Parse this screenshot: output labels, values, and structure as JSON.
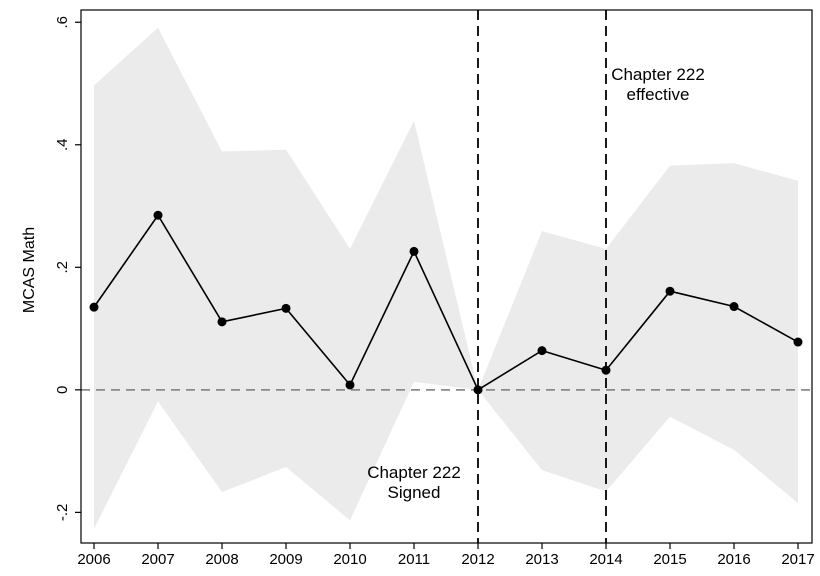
{
  "chart_data": {
    "type": "line",
    "title": "",
    "xlabel": "",
    "ylabel": "MCAS Math",
    "categories": [
      "2006",
      "2007",
      "2008",
      "2009",
      "2010",
      "2011",
      "2012",
      "2013",
      "2014",
      "2015",
      "2016",
      "2017"
    ],
    "series": [
      {
        "values": [
          0.135,
          0.285,
          0.111,
          0.133,
          0.008,
          0.226,
          0.0,
          0.064,
          0.032,
          0.161,
          0.136,
          0.078
        ],
        "ci_upper": [
          0.497,
          0.591,
          0.389,
          0.392,
          0.23,
          0.439,
          0.0,
          0.259,
          0.23,
          0.366,
          0.37,
          0.341
        ],
        "ci_lower": [
          -0.227,
          -0.019,
          -0.167,
          -0.126,
          -0.213,
          0.013,
          0.0,
          -0.131,
          -0.166,
          -0.044,
          -0.098,
          -0.185
        ]
      }
    ],
    "ylim": [
      -0.25,
      0.62
    ],
    "yticks": [
      -0.2,
      0,
      0.2,
      0.4,
      0.6
    ],
    "ytick_labels": [
      "-.2",
      "0",
      ".2",
      ".4",
      ".6"
    ],
    "reference_line_y": 0,
    "vertical_lines": [
      {
        "x": "2012",
        "label_lines": [
          "Chapter 222",
          "Signed"
        ],
        "label_position": "bottom-left"
      },
      {
        "x": "2014",
        "label_lines": [
          "Chapter 222",
          "effective"
        ],
        "label_position": "top-right"
      }
    ],
    "colors": {
      "line": "#000000",
      "ci_band": "#ebebeb",
      "reference_line": "#8a8a8a"
    },
    "grid": false,
    "legend": "none"
  }
}
